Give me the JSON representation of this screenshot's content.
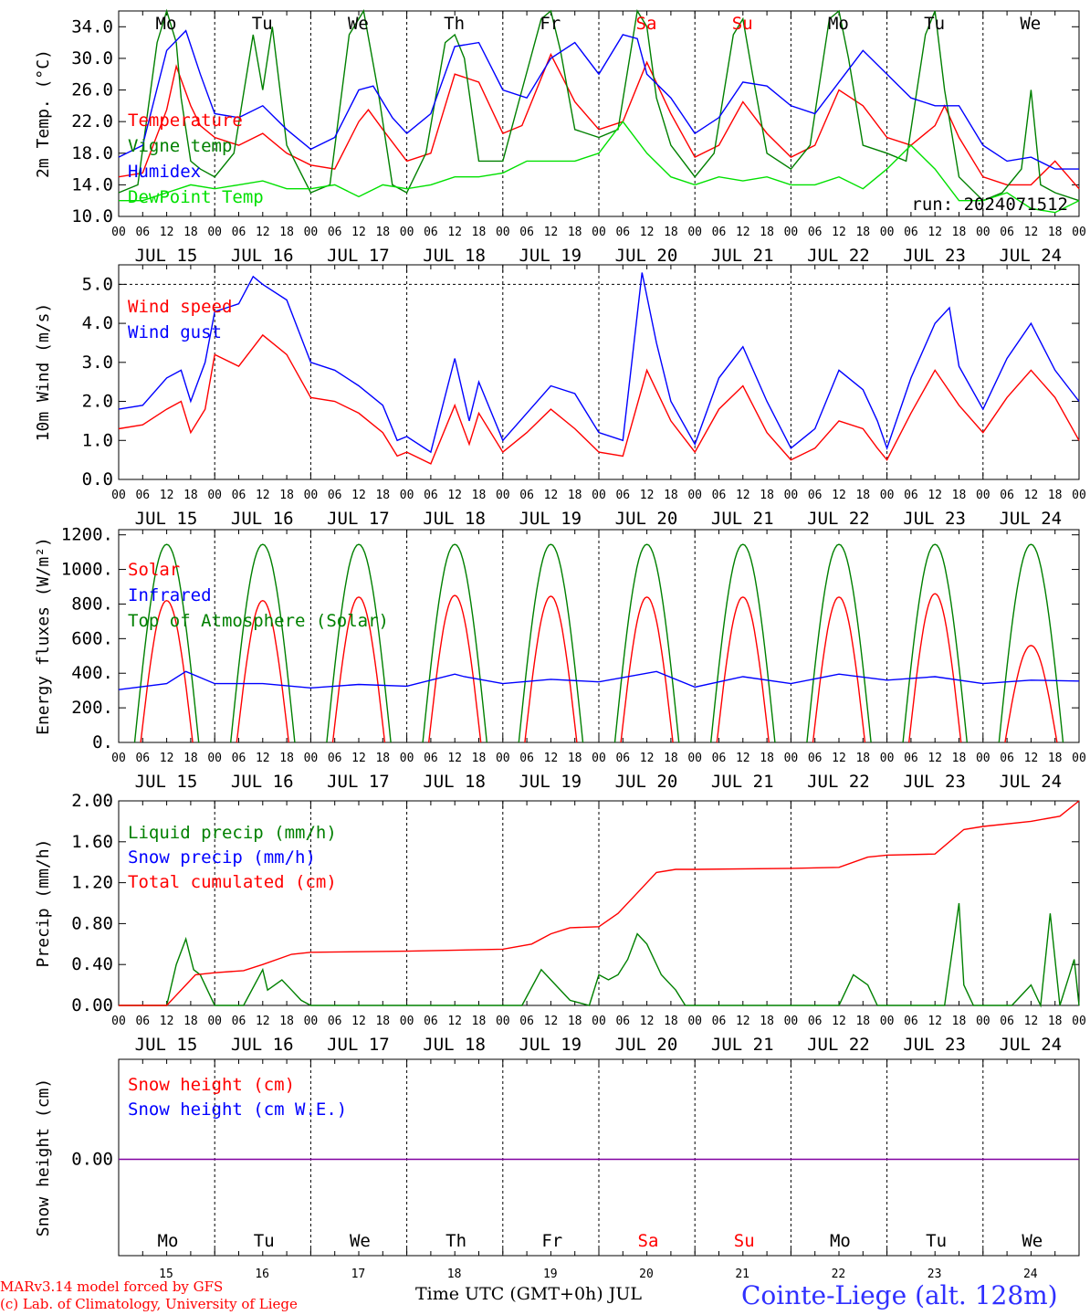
{
  "meta": {
    "day_names": [
      "Mo",
      "Tu",
      "We",
      "Th",
      "Fr",
      "Sa",
      "Su",
      "Mo",
      "Tu",
      "We"
    ],
    "weekend_flags": [
      false,
      false,
      false,
      false,
      false,
      true,
      true,
      false,
      false,
      false
    ],
    "hour_labels": [
      "00",
      "06",
      "12",
      "18"
    ],
    "date_labels": [
      "JUL 15",
      "JUL 16",
      "JUL 17",
      "JUL 18",
      "JUL 19",
      "JUL 20",
      "JUL 21",
      "JUL 22",
      "JUL 23",
      "JUL 24"
    ],
    "day_numbers": [
      "15",
      "16",
      "17",
      "18",
      "19",
      "20",
      "21",
      "22",
      "23",
      "24"
    ],
    "x_axis_title": "Time UTC (GMT+0h) JUL",
    "credit_line1": "MARv3.14 model forced by GFS",
    "credit_line2": "(c) Lab. of Climatology, University of Liege",
    "station": "Cointe-Liege (alt. 128m)",
    "run_label": "run: 2024071512",
    "colors": {
      "red": "#ff0000",
      "green": "#008000",
      "blue": "#0000ff",
      "lime": "#00e000",
      "purple": "#8000a0"
    }
  },
  "chart_data": [
    {
      "id": "temp",
      "type": "line",
      "ylabel": "2m Temp. (°C)",
      "ylim": [
        10,
        36
      ],
      "yticks": [
        "10.0",
        "14.0",
        "18.0",
        "22.0",
        "26.0",
        "30.0",
        "34.0"
      ],
      "x_unit": "days since Jul 15 00 UTC",
      "series": [
        {
          "name": "Temperature",
          "color": "#ff0000",
          "x": [
            0,
            0.25,
            0.5,
            0.6,
            0.75,
            0.85,
            1.0,
            1.25,
            1.5,
            1.75,
            2.0,
            2.25,
            2.5,
            2.6,
            2.75,
            3.0,
            3.25,
            3.5,
            3.75,
            4.0,
            4.2,
            4.5,
            4.75,
            5.0,
            5.25,
            5.5,
            5.75,
            6.0,
            6.25,
            6.5,
            6.75,
            7.0,
            7.25,
            7.5,
            7.75,
            8.0,
            8.25,
            8.5,
            8.6,
            8.75,
            9.0,
            9.25,
            9.5,
            9.75,
            10.0
          ],
          "y": [
            15,
            15.5,
            23.5,
            29,
            24,
            21.5,
            20,
            19,
            20.5,
            18,
            16.5,
            16,
            22,
            23.5,
            21,
            17,
            18,
            28,
            27,
            20.5,
            21.5,
            30.5,
            24.5,
            21,
            22,
            29.5,
            23,
            17.5,
            19,
            24.5,
            20.5,
            17.5,
            19,
            26,
            24,
            20,
            19,
            21.5,
            24,
            20,
            15,
            14,
            14,
            17,
            13.5
          ]
        },
        {
          "name": "Vigne temp",
          "color": "#008000",
          "x": [
            0,
            0.2,
            0.4,
            0.5,
            0.6,
            0.65,
            0.75,
            0.85,
            1.0,
            1.2,
            1.4,
            1.5,
            1.6,
            1.75,
            2.0,
            2.2,
            2.4,
            2.55,
            2.7,
            2.85,
            3.0,
            3.2,
            3.4,
            3.5,
            3.6,
            3.75,
            4.0,
            4.2,
            4.4,
            4.5,
            4.6,
            4.75,
            5.0,
            5.2,
            5.4,
            5.5,
            5.6,
            5.75,
            6.0,
            6.2,
            6.4,
            6.5,
            6.6,
            6.75,
            7.0,
            7.2,
            7.4,
            7.5,
            7.6,
            7.75,
            8.0,
            8.2,
            8.4,
            8.5,
            8.6,
            8.75,
            9.0,
            9.2,
            9.4,
            9.5,
            9.6,
            9.75,
            10.0
          ],
          "y": [
            13,
            14,
            32,
            36,
            32,
            25,
            17,
            16,
            15,
            18,
            33,
            26,
            34,
            19,
            13,
            14,
            33,
            36,
            26,
            14,
            13,
            18,
            32,
            33,
            30,
            17,
            17,
            26,
            35,
            36,
            31,
            21,
            20,
            21,
            36,
            34,
            25,
            19,
            15,
            18,
            33,
            35,
            28,
            18,
            16,
            19,
            35,
            36,
            30,
            19,
            18,
            17,
            33,
            36,
            26,
            15,
            12,
            13,
            16,
            26,
            14,
            13,
            12
          ]
        },
        {
          "name": "Humidex",
          "color": "#0000ff",
          "x": [
            0,
            0.25,
            0.5,
            0.7,
            0.85,
            1.0,
            1.25,
            1.5,
            1.75,
            2.0,
            2.25,
            2.5,
            2.65,
            2.85,
            3.0,
            3.25,
            3.5,
            3.75,
            4.0,
            4.25,
            4.5,
            4.75,
            5.0,
            5.25,
            5.4,
            5.5,
            5.75,
            6.0,
            6.25,
            6.5,
            6.75,
            7.0,
            7.25,
            7.5,
            7.75,
            8.0,
            8.25,
            8.5,
            8.75,
            9.0,
            9.25,
            9.5,
            9.75,
            10.0
          ],
          "y": [
            17.5,
            19,
            31,
            33.5,
            28,
            23,
            22.5,
            24,
            21,
            18.5,
            20,
            26,
            26.5,
            22.5,
            20.5,
            23,
            31.5,
            32,
            26,
            25,
            30,
            32,
            28,
            33,
            32.5,
            28,
            25,
            20.5,
            22.5,
            27,
            26.5,
            24,
            23,
            27,
            31,
            28,
            25,
            24,
            24,
            19,
            17,
            17.5,
            16,
            16
          ]
        },
        {
          "name": "DewPoint Temp",
          "color": "#00e000",
          "x": [
            0,
            0.25,
            0.5,
            0.75,
            1.0,
            1.25,
            1.5,
            1.75,
            2.0,
            2.25,
            2.5,
            2.75,
            3.0,
            3.25,
            3.5,
            3.75,
            4.0,
            4.25,
            4.5,
            4.75,
            5.0,
            5.25,
            5.5,
            5.75,
            6.0,
            6.25,
            6.5,
            6.75,
            7.0,
            7.25,
            7.5,
            7.75,
            8.0,
            8.25,
            8.5,
            8.75,
            9.0,
            9.25,
            9.5,
            9.75,
            10.0
          ],
          "y": [
            12,
            12,
            13,
            14,
            13.5,
            14,
            14.5,
            13.5,
            13.5,
            14,
            12.5,
            14,
            13.5,
            14,
            15,
            15,
            15.5,
            17,
            17,
            17,
            18,
            22,
            18,
            15,
            14,
            15,
            14.5,
            15,
            14,
            14,
            15,
            13.5,
            16,
            19,
            16,
            12,
            12,
            13,
            11,
            10.5,
            12
          ]
        }
      ]
    },
    {
      "id": "wind",
      "type": "line",
      "ylabel": "10m Wind (m/s)",
      "ylim": [
        0,
        5.5
      ],
      "yticks": [
        "0.0",
        "1.0",
        "2.0",
        "3.0",
        "4.0",
        "5.0"
      ],
      "ref_line": 5.0,
      "series": [
        {
          "name": "Wind speed",
          "color": "#ff0000",
          "x": [
            0,
            0.25,
            0.5,
            0.65,
            0.75,
            0.9,
            1.0,
            1.25,
            1.5,
            1.75,
            2.0,
            2.25,
            2.5,
            2.75,
            2.9,
            3.0,
            3.25,
            3.5,
            3.65,
            3.75,
            4.0,
            4.25,
            4.5,
            4.75,
            5.0,
            5.25,
            5.5,
            5.75,
            6.0,
            6.25,
            6.5,
            6.75,
            7.0,
            7.25,
            7.5,
            7.75,
            7.9,
            8.0,
            8.25,
            8.5,
            8.75,
            9.0,
            9.25,
            9.5,
            9.75,
            10.0
          ],
          "y": [
            1.3,
            1.4,
            1.8,
            2.0,
            1.2,
            1.8,
            3.2,
            2.9,
            3.7,
            3.2,
            2.1,
            2.0,
            1.7,
            1.2,
            0.6,
            0.7,
            0.4,
            1.9,
            0.9,
            1.7,
            0.7,
            1.2,
            1.8,
            1.3,
            0.7,
            0.6,
            2.8,
            1.5,
            0.7,
            1.8,
            2.4,
            1.2,
            0.5,
            0.8,
            1.5,
            1.3,
            0.8,
            0.5,
            1.7,
            2.8,
            1.9,
            1.2,
            2.1,
            2.8,
            2.1,
            1.0
          ]
        },
        {
          "name": "Wind gust",
          "color": "#0000ff",
          "x": [
            0,
            0.25,
            0.5,
            0.65,
            0.75,
            0.9,
            1.0,
            1.25,
            1.4,
            1.5,
            1.75,
            2.0,
            2.25,
            2.5,
            2.75,
            2.9,
            3.0,
            3.25,
            3.5,
            3.65,
            3.75,
            4.0,
            4.25,
            4.5,
            4.75,
            5.0,
            5.25,
            5.45,
            5.6,
            5.75,
            6.0,
            6.25,
            6.5,
            6.75,
            7.0,
            7.25,
            7.5,
            7.75,
            7.9,
            8.0,
            8.25,
            8.5,
            8.65,
            8.75,
            9.0,
            9.25,
            9.5,
            9.75,
            10.0
          ],
          "y": [
            1.8,
            1.9,
            2.6,
            2.8,
            2.0,
            3.0,
            4.3,
            4.5,
            5.2,
            5.0,
            4.6,
            3.0,
            2.8,
            2.4,
            1.9,
            1.0,
            1.1,
            0.7,
            3.1,
            1.5,
            2.5,
            1.0,
            1.7,
            2.4,
            2.2,
            1.2,
            1.0,
            5.3,
            3.5,
            2.0,
            0.9,
            2.6,
            3.4,
            2.0,
            0.8,
            1.3,
            2.8,
            2.3,
            1.5,
            0.8,
            2.6,
            4.0,
            4.4,
            2.9,
            1.8,
            3.1,
            4.0,
            2.8,
            2.0
          ]
        }
      ]
    },
    {
      "id": "energy",
      "type": "line",
      "ylabel": "Energy fluxes (W/m²)",
      "ylim": [
        0,
        1230
      ],
      "yticks": [
        "0.",
        "200.",
        "400.",
        "600.",
        "800.",
        "1000.",
        "1200."
      ],
      "series": [
        {
          "name": "Solar",
          "color": "#ff0000"
        },
        {
          "name": "Infrared",
          "color": "#0000ff",
          "x": [
            0,
            0.5,
            0.7,
            1.0,
            1.5,
            2.0,
            2.5,
            3.0,
            3.5,
            3.6,
            4.0,
            4.5,
            5.0,
            5.6,
            6.0,
            6.5,
            7.0,
            7.5,
            8.0,
            8.5,
            9.0,
            9.5,
            10.0
          ],
          "y": [
            305,
            340,
            410,
            340,
            340,
            315,
            335,
            325,
            395,
            380,
            340,
            365,
            350,
            410,
            320,
            380,
            340,
            395,
            360,
            380,
            340,
            360,
            355
          ]
        },
        {
          "name": "Top of Atmosphere (Solar)",
          "color": "#008000",
          "peak": 1145,
          "rise_h": 4,
          "set_h": 20
        },
        {
          "name": "Solar",
          "peaks": [
            820,
            820,
            840,
            850,
            845,
            840,
            840,
            840,
            860,
            560
          ],
          "color": "#ff0000"
        }
      ]
    },
    {
      "id": "precip",
      "type": "line",
      "ylabel": "Precip (mm/h)",
      "ylim": [
        0,
        2.0
      ],
      "yticks": [
        "0.00",
        "0.40",
        "0.80",
        "1.20",
        "1.60",
        "2.00"
      ],
      "series": [
        {
          "name": "Liquid precip (mm/h)",
          "color": "#008000",
          "x": [
            0,
            0.5,
            0.6,
            0.7,
            0.78,
            0.85,
            0.95,
            1.0,
            1.3,
            1.5,
            1.55,
            1.7,
            1.8,
            1.9,
            2.0,
            2.5,
            3.0,
            3.5,
            4.0,
            4.2,
            4.4,
            4.5,
            4.7,
            4.9,
            5.0,
            5.1,
            5.2,
            5.3,
            5.4,
            5.5,
            5.65,
            5.8,
            5.9,
            6.0,
            6.5,
            7.0,
            7.5,
            7.65,
            7.8,
            7.9,
            8.0,
            8.6,
            8.75,
            8.8,
            8.9,
            9.0,
            9.3,
            9.5,
            9.6,
            9.7,
            9.8,
            9.9,
            9.95,
            10.0
          ],
          "y": [
            0,
            0,
            0.4,
            0.65,
            0.35,
            0.3,
            0.1,
            0,
            0,
            0.35,
            0.15,
            0.25,
            0.15,
            0.05,
            0,
            0,
            0,
            0,
            0,
            0,
            0.35,
            0.25,
            0.05,
            0,
            0.3,
            0.25,
            0.3,
            0.45,
            0.7,
            0.6,
            0.3,
            0.15,
            0,
            0,
            0,
            0,
            0,
            0.3,
            0.2,
            0,
            0,
            0,
            1.0,
            0.2,
            0,
            0,
            0,
            0.2,
            0,
            0.9,
            0,
            0.3,
            0.45,
            0
          ]
        },
        {
          "name": "Snow precip (mm/h)",
          "color": "#0000ff"
        },
        {
          "name": "Total cumulated (cm)",
          "color": "#ff0000",
          "x": [
            0,
            0.5,
            0.6,
            0.7,
            0.8,
            1.0,
            1.3,
            1.5,
            1.8,
            2.0,
            3.0,
            4.0,
            4.3,
            4.5,
            4.7,
            5.0,
            5.2,
            5.4,
            5.6,
            5.8,
            6.0,
            7.0,
            7.5,
            7.8,
            8.0,
            8.5,
            8.8,
            9.0,
            9.5,
            9.8,
            10.0
          ],
          "y": [
            0,
            0,
            0.1,
            0.2,
            0.3,
            0.32,
            0.34,
            0.4,
            0.5,
            0.52,
            0.53,
            0.55,
            0.6,
            0.7,
            0.76,
            0.77,
            0.9,
            1.1,
            1.3,
            1.33,
            1.33,
            1.34,
            1.35,
            1.45,
            1.47,
            1.48,
            1.72,
            1.75,
            1.8,
            1.85,
            2.0
          ]
        }
      ]
    },
    {
      "id": "snow",
      "type": "line",
      "ylabel": "Snow height (cm)",
      "yticks": [
        "0.00"
      ],
      "series": [
        {
          "name": "Snow height (cm)",
          "color": "#ff0000"
        },
        {
          "name": "Snow height (cm W.E.)",
          "color": "#0000ff"
        }
      ]
    }
  ]
}
